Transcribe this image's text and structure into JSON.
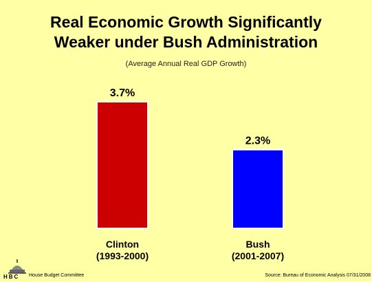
{
  "title_line1": "Real Economic Growth Significantly",
  "title_line2": "Weaker under Bush Administration",
  "subtitle": "(Average Annual Real GDP Growth)",
  "footer": {
    "logo_text": "HBC",
    "committee": "House Budget Committee",
    "source": "Source: Bureau of Economic Analysis 07/31/2008"
  },
  "chart_data": {
    "type": "bar",
    "title": "Real Economic Growth Significantly Weaker under Bush Administration",
    "subtitle": "(Average Annual Real GDP Growth)",
    "categories": [
      {
        "line1": "Clinton",
        "line2": "(1993-2000)"
      },
      {
        "line1": "Bush",
        "line2": "(2001-2007)"
      }
    ],
    "values": [
      3.7,
      2.3
    ],
    "data_labels": [
      "3.7%",
      "2.3%"
    ],
    "colors": [
      "#CC0000",
      "#0000FF"
    ],
    "ylim": [
      0,
      3.7
    ],
    "grid": false,
    "legend": "none"
  }
}
